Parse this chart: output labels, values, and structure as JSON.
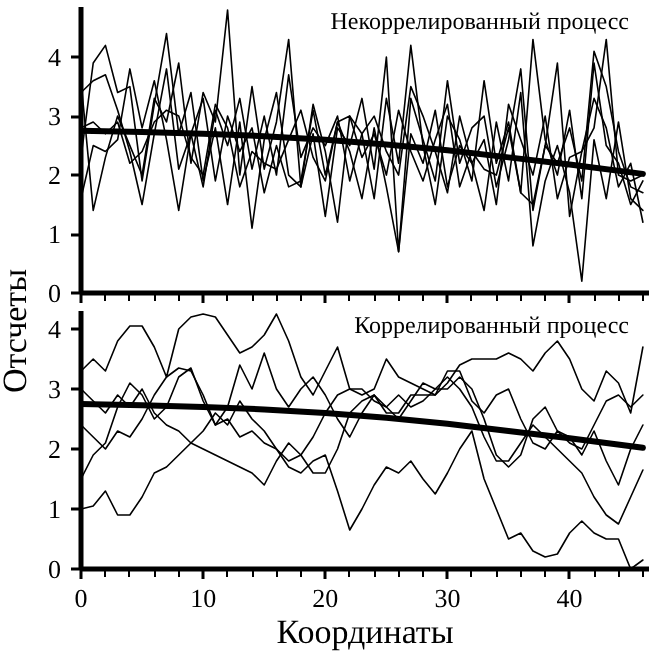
{
  "chart_data": [
    {
      "type": "line",
      "title": "Некоррелированный процесс",
      "ylabel": "Отсчеты",
      "xlim": [
        0,
        46.5
      ],
      "ylim": [
        0,
        4.85
      ],
      "xticks": [
        0,
        10,
        20,
        30,
        40
      ],
      "yticks": [
        0,
        1,
        2,
        3,
        4
      ],
      "tick_labels": "y",
      "grid": false,
      "x": [
        0,
        1,
        2,
        3,
        4,
        5,
        6,
        7,
        8,
        9,
        10,
        11,
        12,
        13,
        14,
        15,
        16,
        17,
        18,
        19,
        20,
        21,
        22,
        23,
        24,
        25,
        26,
        27,
        28,
        29,
        30,
        31,
        32,
        33,
        34,
        35,
        36,
        37,
        38,
        39,
        40,
        41,
        42,
        43,
        44,
        45,
        46
      ],
      "series": [
        {
          "color": "#000000",
          "values": [
            3.6,
            1.4,
            2.3,
            3.0,
            2.5,
            2.0,
            3.3,
            2.9,
            3.9,
            2.2,
            3.4,
            2.9,
            4.8,
            2.0,
            3.5,
            2.1,
            2.9,
            4.3,
            1.8,
            3.2,
            2.4,
            1.2,
            3.0,
            2.7,
            1.6,
            3.3,
            2.2,
            4.2,
            2.5,
            1.5,
            3.0,
            2.6,
            1.9,
            3.6,
            2.2,
            2.9,
            1.7,
            4.3,
            2.6,
            2.0,
            3.1,
            1.6,
            3.9,
            2.5,
            2.2,
            1.5,
            1.9
          ]
        },
        {
          "color": "#000000",
          "values": [
            2.3,
            3.9,
            4.2,
            3.4,
            3.5,
            1.9,
            3.2,
            4.4,
            2.7,
            3.4,
            1.9,
            2.8,
            1.5,
            2.9,
            1.1,
            2.6,
            3.4,
            2.0,
            1.8,
            2.7,
            1.3,
            2.8,
            2.5,
            3.3,
            2.1,
            4.0,
            0.7,
            3.3,
            2.6,
            1.9,
            3.6,
            2.2,
            2.8,
            3.0,
            1.8,
            2.6,
            3.8,
            1.4,
            2.5,
            3.9,
            1.3,
            2.4,
            3.3,
            2.8,
            1.8,
            2.2,
            1.2
          ]
        },
        {
          "color": "#000000",
          "values": [
            3.4,
            3.6,
            3.7,
            3.1,
            2.4,
            1.5,
            2.7,
            3.8,
            2.1,
            2.7,
            3.3,
            1.9,
            3.0,
            2.4,
            2.8,
            1.7,
            2.5,
            1.8,
            1.9,
            3.1,
            2.0,
            2.9,
            2.4,
            1.6,
            2.8,
            1.8,
            0.7,
            2.7,
            2.2,
            3.1,
            1.8,
            2.5,
            2.2,
            1.4,
            2.9,
            1.9,
            3.4,
            0.8,
            1.9,
            2.5,
            1.7,
            0.2,
            2.6,
            1.6,
            2.9,
            1.6,
            1.4
          ]
        },
        {
          "color": "#000000",
          "values": [
            2.8,
            2.9,
            2.7,
            2.9,
            2.2,
            2.4,
            2.9,
            3.1,
            3.0,
            2.3,
            2.0,
            3.2,
            2.8,
            1.8,
            2.4,
            2.2,
            2.1,
            2.6,
            3.1,
            2.3,
            1.9,
            2.9,
            3.0,
            2.3,
            2.7,
            2.0,
            3.1,
            2.4,
            1.9,
            2.6,
            3.2,
            1.8,
            2.4,
            2.1,
            2.0,
            2.8,
            1.7,
            1.5,
            2.5,
            2.2,
            2.8,
            1.9,
            4.1,
            3.5,
            2.4,
            1.8,
            1.7
          ]
        },
        {
          "color": "#000000",
          "values": [
            1.6,
            2.5,
            2.4,
            2.6,
            3.8,
            2.8,
            3.6,
            2.6,
            1.4,
            2.7,
            1.8,
            3.1,
            2.5,
            3.3,
            2.1,
            3.0,
            2.0,
            3.7,
            2.3,
            2.8,
            2.5,
            3.0,
            1.9,
            2.7,
            3.0,
            2.4,
            2.0,
            3.5,
            3.0,
            2.4,
            1.7,
            3.0,
            2.2,
            2.6,
            1.5,
            3.2,
            2.6,
            2.0,
            3.0,
            1.6,
            2.3,
            2.4,
            2.8,
            4.3,
            2.0,
            1.9,
            2.0
          ]
        },
        {
          "type": "line",
          "color": "#000000",
          "x": [
            0,
            5,
            10,
            15,
            20,
            25,
            30,
            35,
            40,
            46
          ],
          "values": [
            2.75,
            2.73,
            2.7,
            2.66,
            2.6,
            2.52,
            2.42,
            2.3,
            2.18,
            2.02
          ]
        }
      ]
    },
    {
      "type": "line",
      "title": "Коррелированный процесс",
      "xlabel": "Координаты",
      "xlim": [
        0,
        46.5
      ],
      "ylim": [
        0,
        4.3
      ],
      "xticks": [
        0,
        10,
        20,
        30,
        40
      ],
      "yticks": [
        0,
        1,
        2,
        3,
        4
      ],
      "grid": false,
      "x": [
        0,
        1,
        2,
        3,
        4,
        5,
        6,
        7,
        8,
        9,
        10,
        11,
        12,
        13,
        14,
        15,
        16,
        17,
        18,
        19,
        20,
        21,
        22,
        23,
        24,
        25,
        26,
        27,
        28,
        29,
        30,
        31,
        32,
        33,
        34,
        35,
        36,
        37,
        38,
        39,
        40,
        41,
        42,
        43,
        44,
        45,
        46
      ],
      "series": [
        {
          "color": "#000000",
          "values": [
            3.3,
            3.5,
            3.3,
            3.8,
            4.05,
            4.05,
            3.7,
            3.2,
            4.0,
            4.2,
            4.25,
            4.2,
            3.9,
            3.6,
            3.7,
            3.9,
            4.25,
            3.8,
            3.2,
            2.9,
            3.3,
            3.7,
            3.0,
            2.9,
            3.0,
            3.5,
            3.2,
            3.1,
            3.0,
            2.9,
            3.1,
            3.4,
            3.5,
            3.5,
            3.5,
            3.6,
            3.5,
            3.3,
            3.6,
            3.8,
            3.5,
            3.0,
            2.8,
            3.3,
            3.1,
            2.6,
            3.7
          ]
        },
        {
          "color": "#000000",
          "values": [
            1.0,
            1.05,
            1.3,
            0.9,
            0.9,
            1.2,
            1.6,
            1.7,
            1.9,
            2.1,
            2.3,
            2.6,
            2.4,
            2.8,
            2.5,
            2.3,
            2.0,
            1.8,
            1.9,
            2.2,
            2.6,
            2.9,
            3.0,
            3.0,
            2.8,
            2.7,
            2.9,
            2.7,
            2.8,
            3.0,
            3.2,
            3.0,
            2.7,
            2.2,
            1.8,
            1.8,
            2.1,
            2.4,
            2.2,
            2.0,
            1.8,
            1.6,
            1.2,
            0.9,
            0.75,
            1.2,
            1.65
          ]
        },
        {
          "color": "#000000",
          "values": [
            2.4,
            2.2,
            2.0,
            2.3,
            2.2,
            2.5,
            2.9,
            3.2,
            3.35,
            3.3,
            2.9,
            2.4,
            2.5,
            2.2,
            2.3,
            2.1,
            2.0,
            1.7,
            1.6,
            1.8,
            1.9,
            1.3,
            0.65,
            1.0,
            1.4,
            1.7,
            1.6,
            1.8,
            1.5,
            1.25,
            1.6,
            2.0,
            2.3,
            1.5,
            1.0,
            0.5,
            0.6,
            0.3,
            0.2,
            0.25,
            0.6,
            0.8,
            0.6,
            0.5,
            0.5,
            0.0,
            0.15
          ]
        },
        {
          "color": "#000000",
          "values": [
            1.5,
            1.9,
            2.1,
            2.7,
            3.1,
            2.9,
            2.5,
            2.7,
            3.2,
            3.35,
            2.8,
            2.4,
            2.7,
            3.4,
            3.0,
            3.6,
            3.0,
            2.7,
            3.0,
            3.2,
            2.9,
            2.5,
            2.2,
            2.6,
            2.9,
            2.6,
            2.6,
            2.9,
            2.9,
            2.9,
            3.3,
            3.3,
            2.8,
            2.6,
            2.9,
            3.0,
            2.5,
            2.1,
            2.0,
            2.3,
            2.2,
            1.9,
            2.3,
            1.8,
            1.4,
            2.0,
            2.4
          ]
        },
        {
          "color": "#000000",
          "values": [
            3.0,
            2.8,
            2.6,
            2.9,
            2.7,
            3.0,
            2.6,
            2.4,
            2.3,
            2.1,
            2.0,
            1.9,
            1.8,
            1.7,
            1.6,
            1.4,
            1.8,
            2.1,
            1.9,
            1.6,
            1.6,
            2.0,
            2.6,
            2.8,
            2.9,
            2.7,
            2.5,
            2.8,
            3.1,
            3.0,
            3.0,
            3.2,
            3.0,
            2.5,
            1.9,
            1.7,
            1.9,
            2.5,
            2.7,
            2.3,
            2.1,
            2.0,
            2.4,
            2.8,
            2.9,
            2.7,
            2.9
          ]
        },
        {
          "type": "line",
          "color": "#000000",
          "x": [
            0,
            5,
            10,
            15,
            20,
            25,
            30,
            35,
            40,
            46
          ],
          "values": [
            2.75,
            2.73,
            2.7,
            2.66,
            2.6,
            2.52,
            2.42,
            2.3,
            2.18,
            2.02
          ]
        }
      ]
    }
  ]
}
